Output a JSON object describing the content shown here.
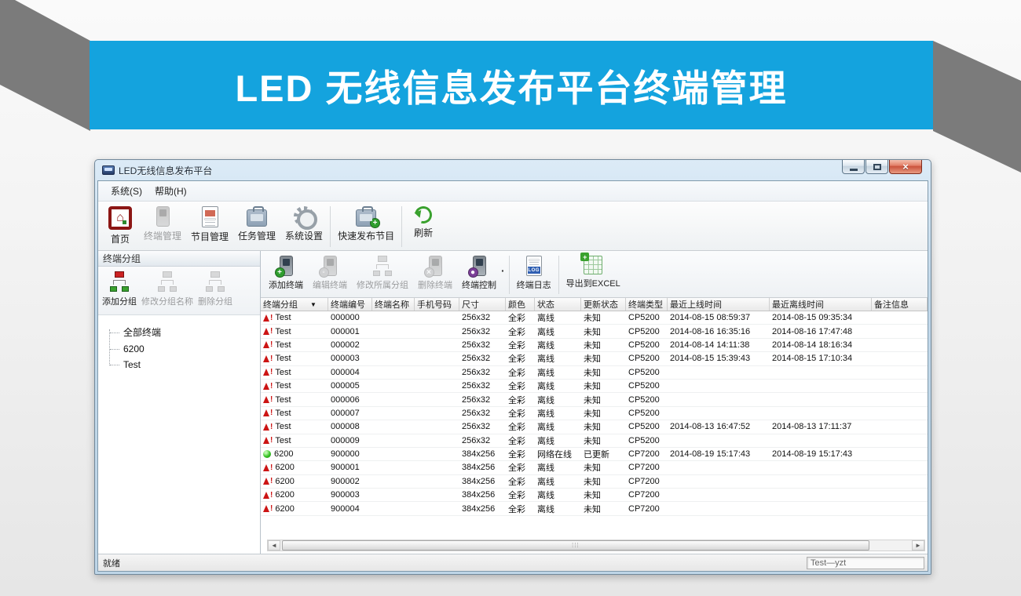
{
  "banner": {
    "title": "LED 无线信息发布平台终端管理",
    "bg_color": "#14a3de",
    "ribbon_color": "#7b7b7b"
  },
  "window": {
    "title": "LED无线信息发布平台",
    "menu": {
      "system": "系统(S)",
      "help": "帮助(H)"
    },
    "toolbar": [
      {
        "label": "首页",
        "icon": "home-icon",
        "enabled": true
      },
      {
        "label": "终端管理",
        "icon": "terminal-manage-icon",
        "enabled": false
      },
      {
        "label": "节目管理",
        "icon": "program-manage-icon",
        "enabled": true
      },
      {
        "label": "任务管理",
        "icon": "task-manage-icon",
        "enabled": true
      },
      {
        "label": "系统设置",
        "icon": "settings-gear-icon",
        "enabled": true
      },
      {
        "label": "快速发布节目",
        "icon": "quick-publish-icon",
        "enabled": true
      },
      {
        "label": "刷新",
        "icon": "refresh-icon",
        "enabled": true
      }
    ]
  },
  "sidebar": {
    "caption": "终端分组",
    "buttons": [
      {
        "label": "添加分组",
        "icon": "add-group-icon",
        "enabled": true
      },
      {
        "label": "修改分组名称",
        "icon": "rename-group-icon",
        "enabled": false
      },
      {
        "label": "删除分组",
        "icon": "delete-group-icon",
        "enabled": false
      }
    ],
    "tree": [
      "全部终端",
      "6200",
      "Test"
    ]
  },
  "terminal_toolbar": [
    {
      "label": "添加终端",
      "icon": "add-terminal-icon",
      "enabled": true
    },
    {
      "label": "编辑终端",
      "icon": "edit-terminal-icon",
      "enabled": false
    },
    {
      "label": "修改所属分组",
      "icon": "change-group-icon",
      "enabled": false
    },
    {
      "label": "删除终端",
      "icon": "delete-terminal-icon",
      "enabled": false
    },
    {
      "label": "终端控制",
      "icon": "terminal-control-icon",
      "enabled": true
    },
    {
      "label": "终端日志",
      "icon": "terminal-log-icon",
      "enabled": true
    },
    {
      "label": "导出到EXCEL",
      "icon": "export-excel-icon",
      "enabled": true
    }
  ],
  "table": {
    "columns": [
      "终端分组",
      "终端编号",
      "终端名称",
      "手机号码",
      "尺寸",
      "颜色",
      "状态",
      "更新状态",
      "终端类型",
      "最近上线时间",
      "最近离线时间",
      "备注信息"
    ],
    "rows": [
      {
        "state": "offline",
        "group": "Test",
        "id": "000000",
        "name": "",
        "phone": "",
        "size": "256x32",
        "color": "全彩",
        "status": "离线",
        "update": "未知",
        "type": "CP5200",
        "online": "2014-08-15 08:59:37",
        "offline": "2014-08-15 09:35:34",
        "note": ""
      },
      {
        "state": "offline",
        "group": "Test",
        "id": "000001",
        "name": "",
        "phone": "",
        "size": "256x32",
        "color": "全彩",
        "status": "离线",
        "update": "未知",
        "type": "CP5200",
        "online": "2014-08-16 16:35:16",
        "offline": "2014-08-16 17:47:48",
        "note": ""
      },
      {
        "state": "offline",
        "group": "Test",
        "id": "000002",
        "name": "",
        "phone": "",
        "size": "256x32",
        "color": "全彩",
        "status": "离线",
        "update": "未知",
        "type": "CP5200",
        "online": "2014-08-14 14:11:38",
        "offline": "2014-08-14 18:16:34",
        "note": ""
      },
      {
        "state": "offline",
        "group": "Test",
        "id": "000003",
        "name": "",
        "phone": "",
        "size": "256x32",
        "color": "全彩",
        "status": "离线",
        "update": "未知",
        "type": "CP5200",
        "online": "2014-08-15 15:39:43",
        "offline": "2014-08-15 17:10:34",
        "note": ""
      },
      {
        "state": "offline",
        "group": "Test",
        "id": "000004",
        "name": "",
        "phone": "",
        "size": "256x32",
        "color": "全彩",
        "status": "离线",
        "update": "未知",
        "type": "CP5200",
        "online": "",
        "offline": "",
        "note": ""
      },
      {
        "state": "offline",
        "group": "Test",
        "id": "000005",
        "name": "",
        "phone": "",
        "size": "256x32",
        "color": "全彩",
        "status": "离线",
        "update": "未知",
        "type": "CP5200",
        "online": "",
        "offline": "",
        "note": ""
      },
      {
        "state": "offline",
        "group": "Test",
        "id": "000006",
        "name": "",
        "phone": "",
        "size": "256x32",
        "color": "全彩",
        "status": "离线",
        "update": "未知",
        "type": "CP5200",
        "online": "",
        "offline": "",
        "note": ""
      },
      {
        "state": "offline",
        "group": "Test",
        "id": "000007",
        "name": "",
        "phone": "",
        "size": "256x32",
        "color": "全彩",
        "status": "离线",
        "update": "未知",
        "type": "CP5200",
        "online": "",
        "offline": "",
        "note": ""
      },
      {
        "state": "offline",
        "group": "Test",
        "id": "000008",
        "name": "",
        "phone": "",
        "size": "256x32",
        "color": "全彩",
        "status": "离线",
        "update": "未知",
        "type": "CP5200",
        "online": "2014-08-13 16:47:52",
        "offline": "2014-08-13 17:11:37",
        "note": ""
      },
      {
        "state": "offline",
        "group": "Test",
        "id": "000009",
        "name": "",
        "phone": "",
        "size": "256x32",
        "color": "全彩",
        "status": "离线",
        "update": "未知",
        "type": "CP5200",
        "online": "",
        "offline": "",
        "note": ""
      },
      {
        "state": "online",
        "group": "6200",
        "id": "900000",
        "name": "",
        "phone": "",
        "size": "384x256",
        "color": "全彩",
        "status": "网络在线",
        "update": "已更新",
        "type": "CP7200",
        "online": "2014-08-19 15:17:43",
        "offline": "2014-08-19 15:17:43",
        "note": ""
      },
      {
        "state": "offline",
        "group": "6200",
        "id": "900001",
        "name": "",
        "phone": "",
        "size": "384x256",
        "color": "全彩",
        "status": "离线",
        "update": "未知",
        "type": "CP7200",
        "online": "",
        "offline": "",
        "note": ""
      },
      {
        "state": "offline",
        "group": "6200",
        "id": "900002",
        "name": "",
        "phone": "",
        "size": "384x256",
        "color": "全彩",
        "status": "离线",
        "update": "未知",
        "type": "CP7200",
        "online": "",
        "offline": "",
        "note": ""
      },
      {
        "state": "offline",
        "group": "6200",
        "id": "900003",
        "name": "",
        "phone": "",
        "size": "384x256",
        "color": "全彩",
        "status": "离线",
        "update": "未知",
        "type": "CP7200",
        "online": "",
        "offline": "",
        "note": ""
      },
      {
        "state": "offline",
        "group": "6200",
        "id": "900004",
        "name": "",
        "phone": "",
        "size": "384x256",
        "color": "全彩",
        "status": "离线",
        "update": "未知",
        "type": "CP7200",
        "online": "",
        "offline": "",
        "note": ""
      }
    ]
  },
  "statusbar": {
    "ready": "就绪",
    "right_box": "Test—yzt"
  }
}
